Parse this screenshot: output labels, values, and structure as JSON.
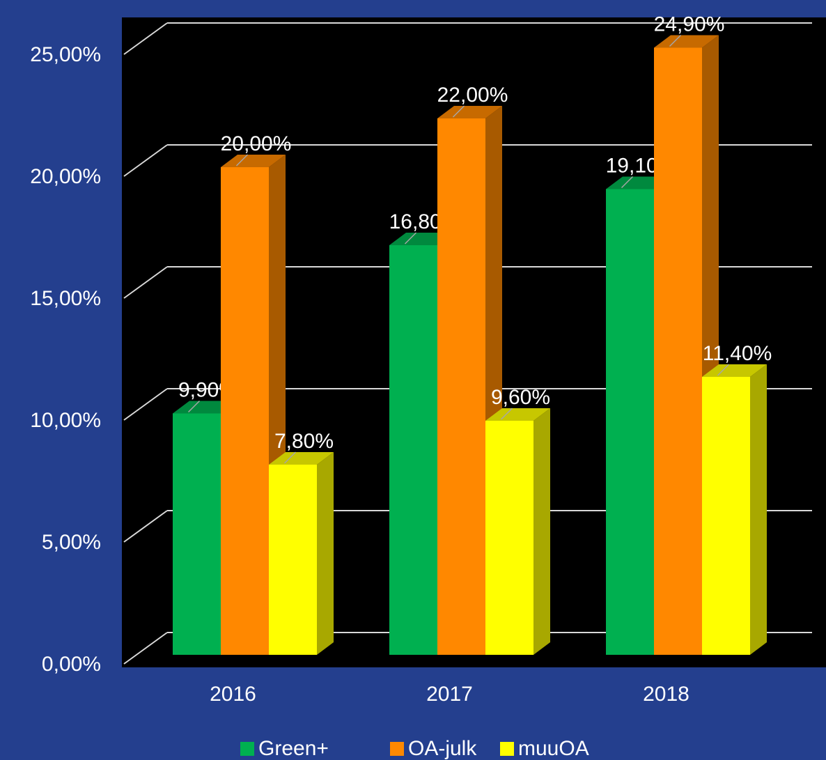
{
  "chart_data": {
    "type": "bar3d",
    "categories": [
      "2016",
      "2017",
      "2018"
    ],
    "series": [
      {
        "name": "Green+",
        "color": "#00b050",
        "values": [
          9.9,
          16.8,
          19.1
        ],
        "value_labels": [
          "9,90%",
          "16,80%",
          "19,10%"
        ]
      },
      {
        "name": "OA-julk",
        "color": "#ff8800",
        "values": [
          20.0,
          22.0,
          24.9
        ],
        "value_labels": [
          "20,00%",
          "22,00%",
          "24,90%"
        ]
      },
      {
        "name": "muuOA",
        "color": "#ffff00",
        "values": [
          7.8,
          9.6,
          11.4
        ],
        "value_labels": [
          "7,80%",
          "9,60%",
          "11,40%"
        ]
      }
    ],
    "ylim": [
      0,
      25
    ],
    "yticks": [
      {
        "value": 0,
        "label": "0,00%"
      },
      {
        "value": 5,
        "label": "5,00%"
      },
      {
        "value": 10,
        "label": "10,00%"
      },
      {
        "value": 15,
        "label": "15,00%"
      },
      {
        "value": 20,
        "label": "20,00%"
      },
      {
        "value": 25,
        "label": "25,00%"
      }
    ],
    "grid": true,
    "legend": "bottom"
  }
}
